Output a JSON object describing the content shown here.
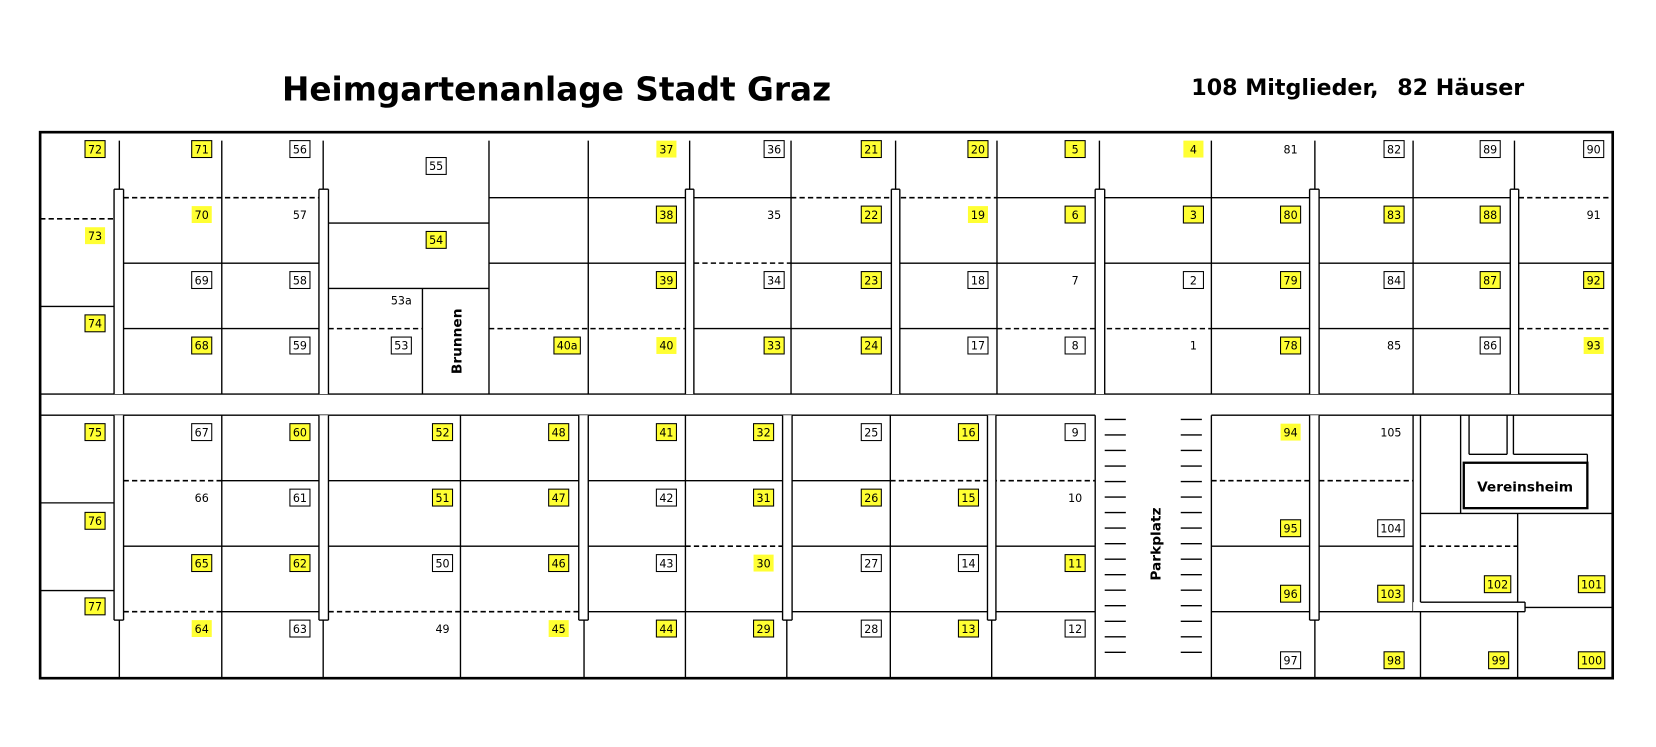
{
  "header": {
    "title": "Heimgartenanlage Stadt Graz",
    "members": "108 Mitglieder,",
    "houses": "82 Häuser"
  },
  "map_labels": {
    "fountain": "Brunnen",
    "parking": "Parkplatz",
    "clubhouse": "Vereinsheim"
  },
  "colors": {
    "highlight": "#ffff33",
    "line": "#000000"
  },
  "plots": [
    {
      "n": "72",
      "yellow": true,
      "box": true
    },
    {
      "n": "71",
      "yellow": true,
      "box": true
    },
    {
      "n": "56",
      "yellow": false,
      "box": true
    },
    {
      "n": "55",
      "yellow": false,
      "box": true
    },
    {
      "n": "37",
      "yellow": true,
      "box": false
    },
    {
      "n": "36",
      "yellow": false,
      "box": true
    },
    {
      "n": "21",
      "yellow": true,
      "box": true
    },
    {
      "n": "20",
      "yellow": true,
      "box": true
    },
    {
      "n": "5",
      "yellow": true,
      "box": true
    },
    {
      "n": "4",
      "yellow": true,
      "box": false
    },
    {
      "n": "81",
      "yellow": false,
      "box": false
    },
    {
      "n": "82",
      "yellow": false,
      "box": true
    },
    {
      "n": "89",
      "yellow": false,
      "box": true
    },
    {
      "n": "90",
      "yellow": false,
      "box": true
    },
    {
      "n": "70",
      "yellow": true,
      "box": false
    },
    {
      "n": "57",
      "yellow": false,
      "box": false
    },
    {
      "n": "73",
      "yellow": true,
      "box": false
    },
    {
      "n": "54",
      "yellow": true,
      "box": true
    },
    {
      "n": "38",
      "yellow": true,
      "box": true
    },
    {
      "n": "35",
      "yellow": false,
      "box": false
    },
    {
      "n": "22",
      "yellow": true,
      "box": true
    },
    {
      "n": "19",
      "yellow": true,
      "box": false
    },
    {
      "n": "6",
      "yellow": true,
      "box": true
    },
    {
      "n": "3",
      "yellow": true,
      "box": true
    },
    {
      "n": "80",
      "yellow": true,
      "box": true
    },
    {
      "n": "83",
      "yellow": true,
      "box": true
    },
    {
      "n": "88",
      "yellow": true,
      "box": true
    },
    {
      "n": "91",
      "yellow": false,
      "box": false
    },
    {
      "n": "69",
      "yellow": false,
      "box": true
    },
    {
      "n": "58",
      "yellow": false,
      "box": true
    },
    {
      "n": "53a",
      "yellow": false,
      "box": false
    },
    {
      "n": "74",
      "yellow": true,
      "box": true
    },
    {
      "n": "39",
      "yellow": true,
      "box": true
    },
    {
      "n": "34",
      "yellow": false,
      "box": true
    },
    {
      "n": "23",
      "yellow": true,
      "box": true
    },
    {
      "n": "18",
      "yellow": false,
      "box": true
    },
    {
      "n": "7",
      "yellow": false,
      "box": false
    },
    {
      "n": "2",
      "yellow": false,
      "box": true
    },
    {
      "n": "79",
      "yellow": true,
      "box": true
    },
    {
      "n": "84",
      "yellow": false,
      "box": true
    },
    {
      "n": "87",
      "yellow": true,
      "box": true
    },
    {
      "n": "92",
      "yellow": true,
      "box": true
    },
    {
      "n": "68",
      "yellow": true,
      "box": true
    },
    {
      "n": "59",
      "yellow": false,
      "box": true
    },
    {
      "n": "53",
      "yellow": false,
      "box": true
    },
    {
      "n": "40a",
      "yellow": true,
      "box": true
    },
    {
      "n": "40",
      "yellow": true,
      "box": false
    },
    {
      "n": "33",
      "yellow": true,
      "box": true
    },
    {
      "n": "24",
      "yellow": true,
      "box": true
    },
    {
      "n": "17",
      "yellow": false,
      "box": true
    },
    {
      "n": "8",
      "yellow": false,
      "box": true
    },
    {
      "n": "1",
      "yellow": false,
      "box": false
    },
    {
      "n": "78",
      "yellow": true,
      "box": true
    },
    {
      "n": "85",
      "yellow": false,
      "box": false
    },
    {
      "n": "86",
      "yellow": false,
      "box": true
    },
    {
      "n": "93",
      "yellow": true,
      "box": false
    },
    {
      "n": "75",
      "yellow": true,
      "box": true
    },
    {
      "n": "67",
      "yellow": false,
      "box": true
    },
    {
      "n": "60",
      "yellow": true,
      "box": true
    },
    {
      "n": "52",
      "yellow": true,
      "box": true
    },
    {
      "n": "48",
      "yellow": true,
      "box": true
    },
    {
      "n": "41",
      "yellow": true,
      "box": true
    },
    {
      "n": "32",
      "yellow": true,
      "box": true
    },
    {
      "n": "25",
      "yellow": false,
      "box": true
    },
    {
      "n": "16",
      "yellow": true,
      "box": true
    },
    {
      "n": "9",
      "yellow": false,
      "box": true
    },
    {
      "n": "94",
      "yellow": true,
      "box": false
    },
    {
      "n": "105",
      "yellow": false,
      "box": false
    },
    {
      "n": "76",
      "yellow": true,
      "box": true
    },
    {
      "n": "66",
      "yellow": false,
      "box": false
    },
    {
      "n": "61",
      "yellow": false,
      "box": true
    },
    {
      "n": "51",
      "yellow": true,
      "box": true
    },
    {
      "n": "47",
      "yellow": true,
      "box": true
    },
    {
      "n": "42",
      "yellow": false,
      "box": true
    },
    {
      "n": "31",
      "yellow": true,
      "box": true
    },
    {
      "n": "26",
      "yellow": true,
      "box": true
    },
    {
      "n": "15",
      "yellow": true,
      "box": true
    },
    {
      "n": "10",
      "yellow": false,
      "box": false
    },
    {
      "n": "95",
      "yellow": true,
      "box": true
    },
    {
      "n": "104",
      "yellow": false,
      "box": true
    },
    {
      "n": "77",
      "yellow": true,
      "box": true
    },
    {
      "n": "65",
      "yellow": true,
      "box": true
    },
    {
      "n": "62",
      "yellow": true,
      "box": true
    },
    {
      "n": "50",
      "yellow": false,
      "box": true
    },
    {
      "n": "46",
      "yellow": true,
      "box": true
    },
    {
      "n": "43",
      "yellow": false,
      "box": true
    },
    {
      "n": "30",
      "yellow": true,
      "box": false
    },
    {
      "n": "27",
      "yellow": false,
      "box": true
    },
    {
      "n": "14",
      "yellow": false,
      "box": true
    },
    {
      "n": "11",
      "yellow": true,
      "box": true
    },
    {
      "n": "96",
      "yellow": true,
      "box": true
    },
    {
      "n": "103",
      "yellow": true,
      "box": true
    },
    {
      "n": "102",
      "yellow": true,
      "box": true
    },
    {
      "n": "101",
      "yellow": true,
      "box": true
    },
    {
      "n": "64",
      "yellow": true,
      "box": false
    },
    {
      "n": "63",
      "yellow": false,
      "box": true
    },
    {
      "n": "49",
      "yellow": false,
      "box": false
    },
    {
      "n": "45",
      "yellow": true,
      "box": false
    },
    {
      "n": "44",
      "yellow": true,
      "box": true
    },
    {
      "n": "29",
      "yellow": true,
      "box": true
    },
    {
      "n": "28",
      "yellow": false,
      "box": true
    },
    {
      "n": "13",
      "yellow": true,
      "box": true
    },
    {
      "n": "12",
      "yellow": false,
      "box": true
    },
    {
      "n": "97",
      "yellow": false,
      "box": true
    },
    {
      "n": "98",
      "yellow": true,
      "box": true
    },
    {
      "n": "99",
      "yellow": true,
      "box": true
    },
    {
      "n": "100",
      "yellow": true,
      "box": true
    }
  ]
}
